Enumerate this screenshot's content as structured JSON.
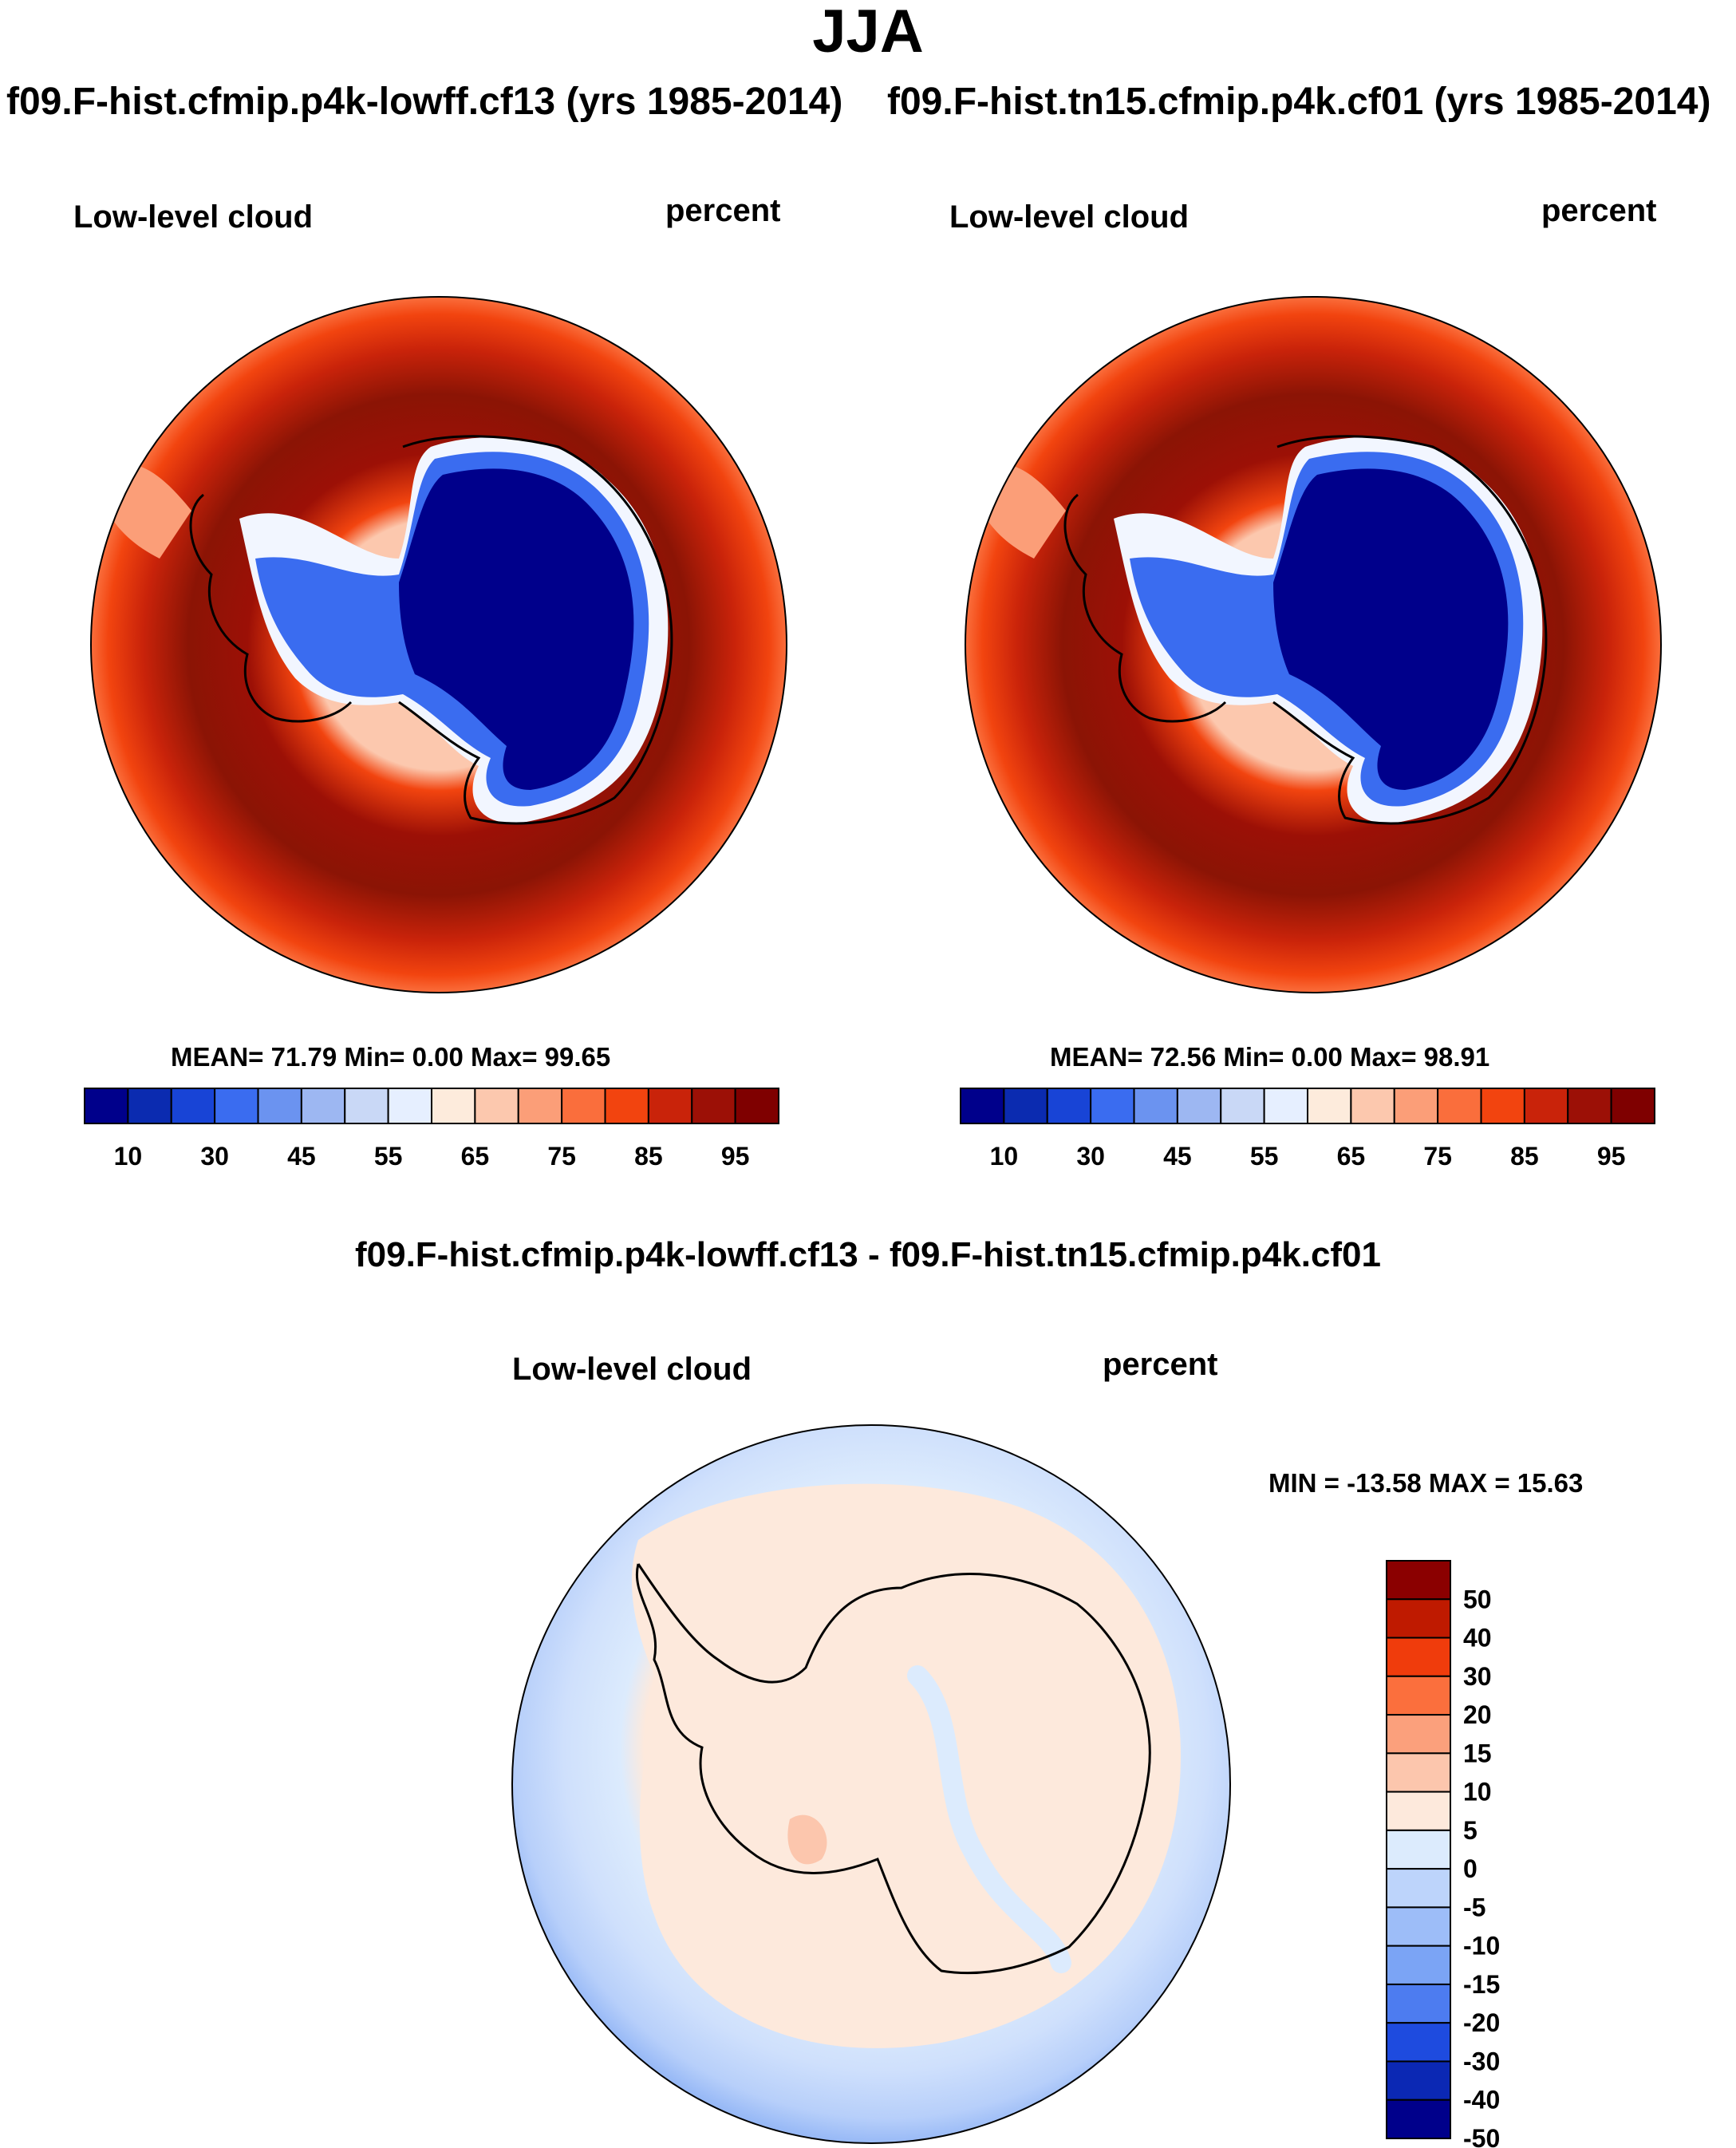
{
  "title": "JJA",
  "variable": "Low-level cloud",
  "units": "percent",
  "panels": {
    "left": {
      "case": "f09.F-hist.cfmip.p4k-lowff.cf13 (yrs 1985-2014)",
      "stats": "MEAN=  71.79  Min=    0.00  Max=  99.65"
    },
    "right": {
      "case": "f09.F-hist.tn15.cfmip.p4k.cf01 (yrs 1985-2014)",
      "stats": "MEAN=  72.56  Min=    0.00  Max=  98.91"
    },
    "difference": {
      "title": "f09.F-hist.cfmip.p4k-lowff.cf13 - f09.F-hist.tn15.cfmip.p4k.cf01",
      "stats": "MIN = -13.58 MAX =  15.63"
    }
  },
  "colorbars": {
    "main": {
      "tick_labels": [
        "10",
        "30",
        "45",
        "55",
        "65",
        "75",
        "85",
        "95"
      ],
      "colors": [
        "#00008b",
        "#0b2bb0",
        "#1844d6",
        "#3a6cf0",
        "#6b93f0",
        "#9db7f2",
        "#c9d8f6",
        "#e6efff",
        "#fdebdc",
        "#fcc8ae",
        "#fb9e78",
        "#fa6e3c",
        "#f2440f",
        "#c9230a",
        "#9c1006",
        "#7f0000"
      ]
    },
    "diff": {
      "tick_labels": [
        "50",
        "40",
        "30",
        "20",
        "15",
        "10",
        "5",
        "0",
        "-5",
        "-10",
        "-15",
        "-20",
        "-30",
        "-40",
        "-50"
      ],
      "colors": [
        "#8b0000",
        "#bf1a00",
        "#f03c0c",
        "#fb6f3d",
        "#fba07c",
        "#fcc6ad",
        "#fde9dc",
        "#dcebfd",
        "#bdd4fb",
        "#9dbdf8",
        "#7ba4f5",
        "#4d7cf0",
        "#1e4bdf",
        "#0b28b4",
        "#00008b"
      ]
    }
  }
}
